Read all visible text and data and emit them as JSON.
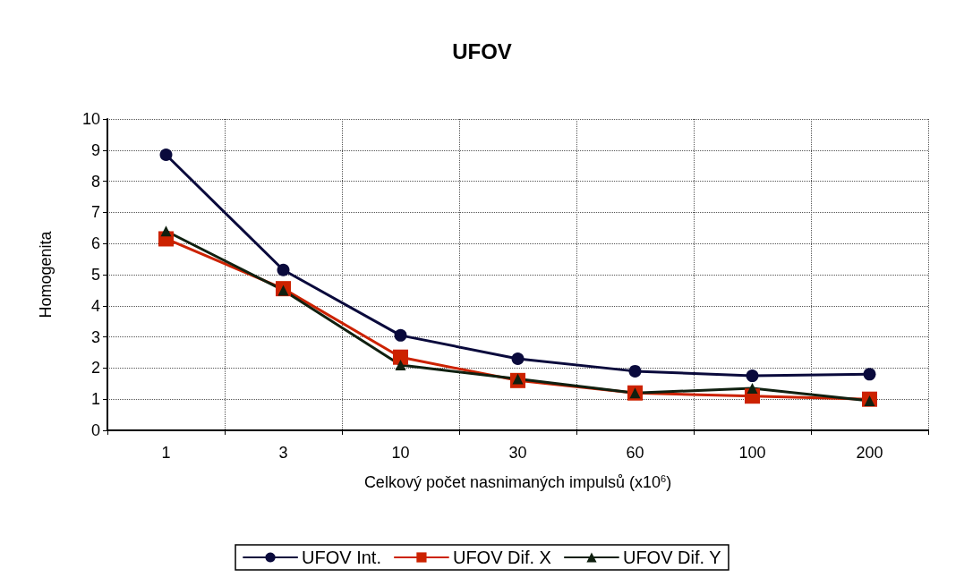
{
  "chart_data": {
    "type": "line",
    "title": "UFOV",
    "xlabel": "Celkový počet nasnimaných impulsů (x10$^{6}$)",
    "ylabel": "Homogenita",
    "categories": [
      "1",
      "3",
      "10",
      "30",
      "60",
      "100",
      "200"
    ],
    "series": [
      {
        "name": "UFOV Int.",
        "color": "#0a0a3c",
        "marker": "circle",
        "values": [
          8.85,
          5.15,
          3.05,
          2.3,
          1.9,
          1.75,
          1.8
        ]
      },
      {
        "name": "UFOV Dif. X",
        "color": "#cc2200",
        "marker": "square",
        "values": [
          6.15,
          4.55,
          2.35,
          1.6,
          1.2,
          1.1,
          1.0
        ]
      },
      {
        "name": "UFOV Dif. Y",
        "color": "#102010",
        "marker": "triangle",
        "values": [
          6.4,
          4.5,
          2.1,
          1.65,
          1.2,
          1.35,
          0.95
        ]
      }
    ],
    "ylim": [
      0,
      10
    ],
    "yticks": [
      0,
      1,
      2,
      3,
      4,
      5,
      6,
      7,
      8,
      9,
      10
    ],
    "grid": true,
    "legend": "bottom",
    "line_style": "solid"
  }
}
